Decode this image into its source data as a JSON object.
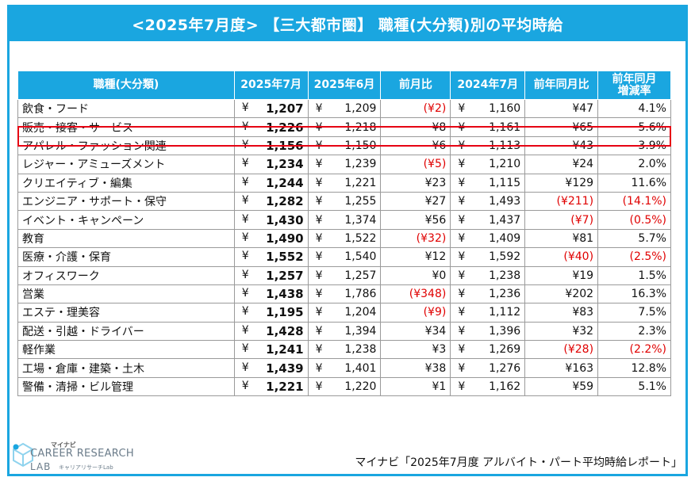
{
  "title": "<2025年7月度> 【三大都市圏】 職種(大分類)別の平均時給",
  "headers": [
    "職種(大分類)",
    "2025年7月",
    "2025年6月",
    "前月比",
    "2024年7月",
    "前年同月比",
    "前年同月\n増減率"
  ],
  "header_line1": "前年同月",
  "header_line2": "増減率",
  "currency": "¥",
  "rows": [
    {
      "job": "飲食・フード",
      "jul25": "1,207",
      "jun25": "1,209",
      "mom": "(¥2)",
      "mom_neg": true,
      "jul24": "1,160",
      "yoy": "¥47",
      "yoy_neg": false,
      "rate": "4.1%",
      "rate_neg": false
    },
    {
      "job": "販売・接客・サービス",
      "jul25": "1,226",
      "jun25": "1,218",
      "mom": "¥8",
      "mom_neg": false,
      "jul24": "1,161",
      "yoy": "¥65",
      "yoy_neg": false,
      "rate": "5.6%",
      "rate_neg": false
    },
    {
      "job": "アパレル・ファッション関連",
      "jul25": "1,156",
      "jun25": "1,150",
      "mom": "¥6",
      "mom_neg": false,
      "jul24": "1,113",
      "yoy": "¥43",
      "yoy_neg": false,
      "rate": "3.9%",
      "rate_neg": false
    },
    {
      "job": "レジャー・アミューズメント",
      "jul25": "1,234",
      "jun25": "1,239",
      "mom": "(¥5)",
      "mom_neg": true,
      "jul24": "1,210",
      "yoy": "¥24",
      "yoy_neg": false,
      "rate": "2.0%",
      "rate_neg": false
    },
    {
      "job": "クリエイティブ・編集",
      "jul25": "1,244",
      "jun25": "1,221",
      "mom": "¥23",
      "mom_neg": false,
      "jul24": "1,115",
      "yoy": "¥129",
      "yoy_neg": false,
      "rate": "11.6%",
      "rate_neg": false
    },
    {
      "job": "エンジニア・サポート・保守",
      "jul25": "1,282",
      "jun25": "1,255",
      "mom": "¥27",
      "mom_neg": false,
      "jul24": "1,493",
      "yoy": "(¥211)",
      "yoy_neg": true,
      "rate": "(14.1%)",
      "rate_neg": true
    },
    {
      "job": "イベント・キャンペーン",
      "jul25": "1,430",
      "jun25": "1,374",
      "mom": "¥56",
      "mom_neg": false,
      "jul24": "1,437",
      "yoy": "(¥7)",
      "yoy_neg": true,
      "rate": "(0.5%)",
      "rate_neg": true
    },
    {
      "job": "教育",
      "jul25": "1,490",
      "jun25": "1,522",
      "mom": "(¥32)",
      "mom_neg": true,
      "jul24": "1,409",
      "yoy": "¥81",
      "yoy_neg": false,
      "rate": "5.7%",
      "rate_neg": false
    },
    {
      "job": "医療・介護・保育",
      "jul25": "1,552",
      "jun25": "1,540",
      "mom": "¥12",
      "mom_neg": false,
      "jul24": "1,592",
      "yoy": "(¥40)",
      "yoy_neg": true,
      "rate": "(2.5%)",
      "rate_neg": true
    },
    {
      "job": "オフィスワーク",
      "jul25": "1,257",
      "jun25": "1,257",
      "mom": "¥0",
      "mom_neg": false,
      "jul24": "1,238",
      "yoy": "¥19",
      "yoy_neg": false,
      "rate": "1.5%",
      "rate_neg": false
    },
    {
      "job": "営業",
      "jul25": "1,438",
      "jun25": "1,786",
      "mom": "(¥348)",
      "mom_neg": true,
      "jul24": "1,236",
      "yoy": "¥202",
      "yoy_neg": false,
      "rate": "16.3%",
      "rate_neg": false
    },
    {
      "job": "エステ・理美容",
      "jul25": "1,195",
      "jun25": "1,204",
      "mom": "(¥9)",
      "mom_neg": true,
      "jul24": "1,112",
      "yoy": "¥83",
      "yoy_neg": false,
      "rate": "7.5%",
      "rate_neg": false
    },
    {
      "job": "配送・引越・ドライバー",
      "jul25": "1,428",
      "jun25": "1,394",
      "mom": "¥34",
      "mom_neg": false,
      "jul24": "1,396",
      "yoy": "¥32",
      "yoy_neg": false,
      "rate": "2.3%",
      "rate_neg": false
    },
    {
      "job": "軽作業",
      "jul25": "1,241",
      "jun25": "1,238",
      "mom": "¥3",
      "mom_neg": false,
      "jul24": "1,269",
      "yoy": "(¥28)",
      "yoy_neg": true,
      "rate": "(2.2%)",
      "rate_neg": true
    },
    {
      "job": "工場・倉庫・建築・土木",
      "jul25": "1,439",
      "jun25": "1,401",
      "mom": "¥38",
      "mom_neg": false,
      "jul24": "1,276",
      "yoy": "¥163",
      "yoy_neg": false,
      "rate": "12.8%",
      "rate_neg": false
    },
    {
      "job": "警備・清掃・ビル管理",
      "jul25": "1,221",
      "jun25": "1,220",
      "mom": "¥1",
      "mom_neg": false,
      "jul24": "1,162",
      "yoy": "¥59",
      "yoy_neg": false,
      "rate": "5.1%",
      "rate_neg": false
    }
  ],
  "highlighted_row": "販売・接客・サービス",
  "logo": {
    "maker": "マイナビ",
    "line1": "CAREER RESEARCH",
    "line2": "LAB",
    "sub": "キャリアリサーチLab",
    "icon": "cube-logo-icon"
  },
  "source": "マイナビ「2025年7月度 アルバイト・パート平均時給レポート」",
  "colors": {
    "accent": "#1aa6e0",
    "negative": "#e00000",
    "highlight_border": "#e60012"
  }
}
